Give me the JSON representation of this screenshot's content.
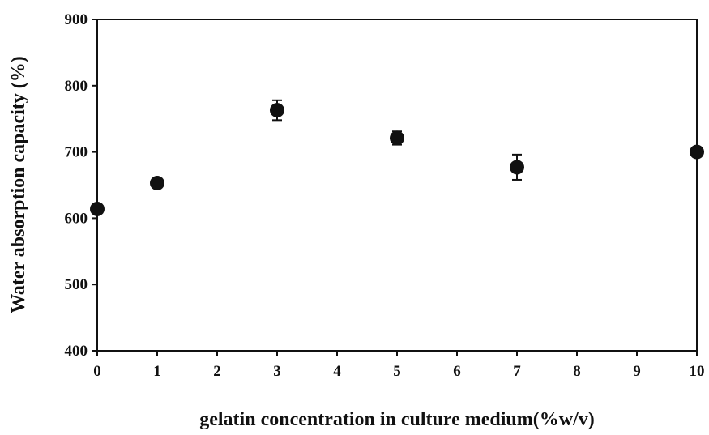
{
  "chart_data": {
    "type": "scatter",
    "x_label": "gelatin concentration in culture medium(%w/v)",
    "y_label": "Water absorption capacity (%)",
    "x": [
      0,
      1,
      3,
      5,
      7,
      10
    ],
    "values": [
      614,
      653,
      763,
      721,
      677,
      700
    ],
    "errors": [
      null,
      null,
      15,
      10,
      19,
      null
    ],
    "color": "#111111",
    "xlim": [
      0,
      10
    ],
    "xticks": [
      0,
      1,
      2,
      3,
      4,
      5,
      6,
      7,
      8,
      9,
      10
    ],
    "ylim": [
      400,
      900
    ],
    "yticks": [
      400,
      500,
      600,
      700,
      800,
      900
    ],
    "grid": false
  }
}
